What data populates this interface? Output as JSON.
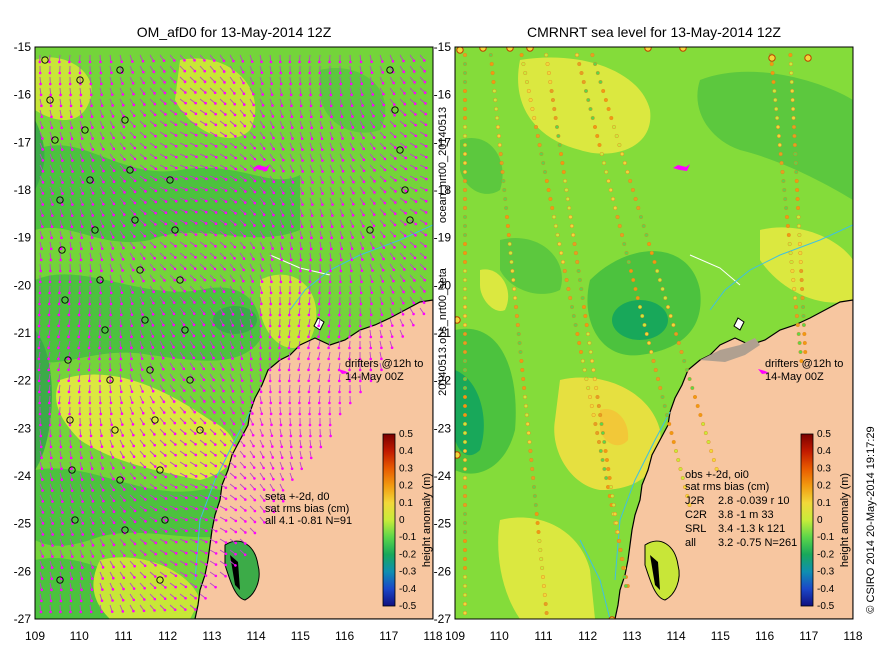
{
  "left": {
    "title": "OM_afD0 for 13-May-2014 12Z",
    "drifters_line1": "drifters @12h to",
    "drifters_line2": "14-May 00Z",
    "stats_line1": "seta +-2d, d0",
    "stats_line2": "sat rms bias (cm)",
    "stats_line3": "all 4.1 -0.81 N=91",
    "colorbar_label": "height anomaly (m)"
  },
  "right": {
    "title": "CMRNRT sea level  for 13-May-2014 12Z",
    "drifters_line1": "drifters @12h to",
    "drifters_line2": "14-May 00Z",
    "stats_line1": "obs +-2d, oi0",
    "stats_line2": "sat rms bias (cm)",
    "stats_rows": [
      {
        "sat": "J2R",
        "vals": "2.8 -0.039 r 10"
      },
      {
        "sat": "C2R",
        "vals": "3.8 -1 m 33"
      },
      {
        "sat": "SRL",
        "vals": "3.4 -1.3 k 121"
      },
      {
        "sat": "all",
        "vals": "3.2 -0.75 N=261"
      }
    ],
    "colorbar_label": "height anomaly (m)"
  },
  "side_label": "20140513.obs_nrt00_seta",
  "side_label2": "ocean_nrt00_20140513",
  "credit": "© CSIRO 2014   20-May-2014 19:17:29",
  "axes": {
    "y_ticks": [
      "-15",
      "-16",
      "-17",
      "-18",
      "-19",
      "-20",
      "-21",
      "-22",
      "-23",
      "-24",
      "-25",
      "-26",
      "-27"
    ],
    "x_ticks": [
      "109",
      "110",
      "111",
      "112",
      "113",
      "114",
      "115",
      "116",
      "117",
      "118"
    ]
  },
  "colorbar": {
    "ticks": [
      "0.5",
      "0.4",
      "0.3",
      "0.2",
      "0.1",
      "0",
      "-0.1",
      "-0.2",
      "-0.3",
      "-0.4",
      "-0.5"
    ],
    "colors": [
      "#7a0000",
      "#c21a00",
      "#e85a00",
      "#f29a10",
      "#f2d83a",
      "#c8ec3a",
      "#5cd64a",
      "#18a85a",
      "#0f8fb0",
      "#1b47c8",
      "#101080"
    ]
  },
  "colors": {
    "land": "#f7c6a0",
    "drifter": "#ff00ff",
    "vector": "#c040d0",
    "coast": "#000000"
  },
  "map_data": {
    "lon_range": [
      109,
      118
    ],
    "lat_range": [
      -27,
      -15
    ]
  }
}
